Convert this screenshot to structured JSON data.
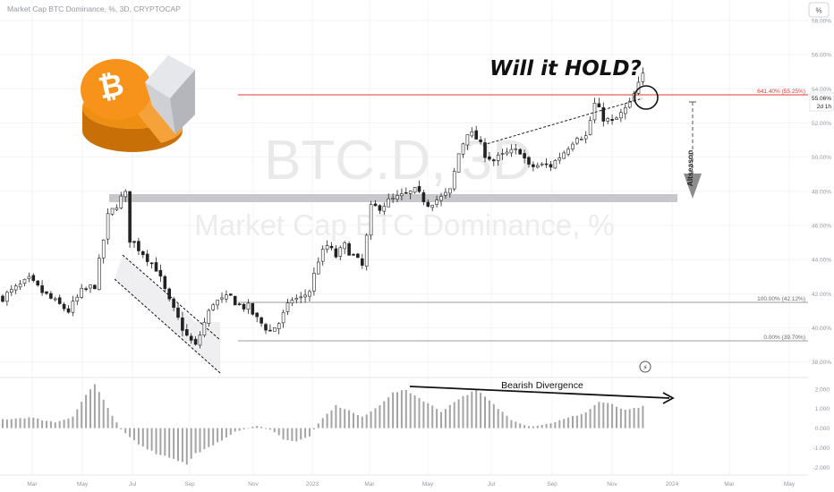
{
  "header": {
    "symbol_line": "Market Cap BTC Dominance, %, 3D, CRYPTOCAP"
  },
  "watermark": {
    "ticker": "BTC.D, 3D",
    "name": "Market Cap BTC Dominance, %"
  },
  "annotations": {
    "will_hold": "Will it HOLD?",
    "altseason": "Altseason",
    "bearish_divergence": "Bearish Divergence"
  },
  "price_scale": {
    "unit_button": "%",
    "last_price": "55.06%",
    "countdown": "2d 1h",
    "fib_641": "641.40% (55.25%)",
    "fib_100": "100.00% (42.12%)",
    "fib_0": "0.00% (39.70%)"
  },
  "colors": {
    "up": "#26a69a",
    "down": "#434651",
    "fib_top": "#e53935",
    "fib": "#9e9e9e",
    "zone": "#c8c8cc",
    "osc": "#a4a4a4",
    "arrow_grey": "#8c8c8c",
    "logo_orange": "#f7931a"
  },
  "chart_data": [
    {
      "type": "candlestick",
      "timeframe": "3D",
      "x_ticks": [
        "Mar",
        "May",
        "Jul",
        "Sep",
        "Nov",
        "2023",
        "Mar",
        "May",
        "Jul",
        "Sep",
        "Nov",
        "2024",
        "Mar",
        "May"
      ],
      "y_ticks": [
        38,
        40,
        42,
        44,
        46,
        48,
        50,
        52,
        54,
        56,
        58
      ],
      "ylim": [
        37.2,
        59.2
      ],
      "close_path": [
        [
          0,
          41.8
        ],
        [
          3,
          42.3
        ],
        [
          6,
          42.8
        ],
        [
          9,
          42.1
        ],
        [
          12,
          41.5
        ],
        [
          15,
          41.0
        ],
        [
          18,
          42.1
        ],
        [
          21,
          42.5
        ],
        [
          24,
          46.5
        ],
        [
          27,
          47.6
        ],
        [
          28.5,
          47.9
        ],
        [
          29,
          45.2
        ],
        [
          32,
          44.4
        ],
        [
          35,
          43.5
        ],
        [
          38,
          41.5
        ],
        [
          40,
          40.5
        ],
        [
          42,
          39.5
        ],
        [
          44,
          38.9
        ],
        [
          46,
          40.3
        ],
        [
          48,
          41.5
        ],
        [
          50,
          41.6
        ],
        [
          52,
          41.8
        ],
        [
          54,
          41.3
        ],
        [
          56,
          41.2
        ],
        [
          58,
          40.5
        ],
        [
          61,
          39.8
        ],
        [
          63,
          40.3
        ],
        [
          66,
          41.7
        ],
        [
          68,
          41.7
        ],
        [
          70,
          42.2
        ],
        [
          72,
          44.0
        ],
        [
          74,
          44.8
        ],
        [
          76,
          44.2
        ],
        [
          78,
          44.8
        ],
        [
          80,
          44.2
        ],
        [
          82,
          43.6
        ],
        [
          84,
          47.0
        ],
        [
          86,
          47.1
        ],
        [
          88,
          47.4
        ],
        [
          91,
          47.7
        ],
        [
          94,
          48.0
        ],
        [
          97,
          47.3
        ],
        [
          100,
          47.6
        ],
        [
          102,
          48.0
        ],
        [
          104,
          50.2
        ],
        [
          106,
          51.5
        ],
        [
          108,
          51.1
        ],
        [
          110,
          50.2
        ],
        [
          112,
          49.8
        ],
        [
          115,
          50.2
        ],
        [
          118,
          50.4
        ],
        [
          120,
          49.4
        ],
        [
          122,
          49.5
        ],
        [
          125,
          49.5
        ],
        [
          128,
          50.3
        ],
        [
          131,
          51.3
        ],
        [
          133,
          51.2
        ],
        [
          135,
          53.1
        ],
        [
          137,
          52.3
        ],
        [
          139,
          52.0
        ],
        [
          141,
          52.5
        ],
        [
          143,
          53.1
        ],
        [
          145,
          54.2
        ],
        [
          146.2,
          55.06
        ]
      ],
      "points_count": 147
    },
    {
      "type": "bar",
      "name": "oscillator",
      "y_ticks": [
        -2,
        -1,
        0,
        1,
        2
      ],
      "ylim": [
        -2.35,
        2.45
      ],
      "envelope": [
        [
          0,
          0.45
        ],
        [
          6,
          0.55
        ],
        [
          12,
          0.3
        ],
        [
          16,
          0.6
        ],
        [
          19,
          1.7
        ],
        [
          21,
          2.25
        ],
        [
          24,
          1.0
        ],
        [
          27,
          -0.1
        ],
        [
          31,
          -0.8
        ],
        [
          35,
          -1.3
        ],
        [
          39,
          -1.55
        ],
        [
          42,
          -1.85
        ],
        [
          44,
          -1.3
        ],
        [
          48,
          -0.9
        ],
        [
          52,
          -0.3
        ],
        [
          55,
          -0.05
        ],
        [
          58,
          0.1
        ],
        [
          61,
          -0.05
        ],
        [
          64,
          -0.55
        ],
        [
          67,
          -0.7
        ],
        [
          70,
          -0.4
        ],
        [
          73,
          0.5
        ],
        [
          76,
          1.15
        ],
        [
          79,
          0.9
        ],
        [
          82,
          0.55
        ],
        [
          85,
          1.0
        ],
        [
          89,
          1.8
        ],
        [
          92,
          1.95
        ],
        [
          96,
          1.4
        ],
        [
          100,
          0.85
        ],
        [
          104,
          1.5
        ],
        [
          108,
          1.95
        ],
        [
          110,
          1.6
        ],
        [
          113,
          1.0
        ],
        [
          116,
          0.45
        ],
        [
          120,
          0.1
        ],
        [
          124,
          0.2
        ],
        [
          128,
          0.45
        ],
        [
          133,
          0.8
        ],
        [
          136,
          1.35
        ],
        [
          139,
          1.2
        ],
        [
          142,
          0.9
        ],
        [
          146,
          1.1
        ]
      ],
      "points_count": 147
    }
  ]
}
